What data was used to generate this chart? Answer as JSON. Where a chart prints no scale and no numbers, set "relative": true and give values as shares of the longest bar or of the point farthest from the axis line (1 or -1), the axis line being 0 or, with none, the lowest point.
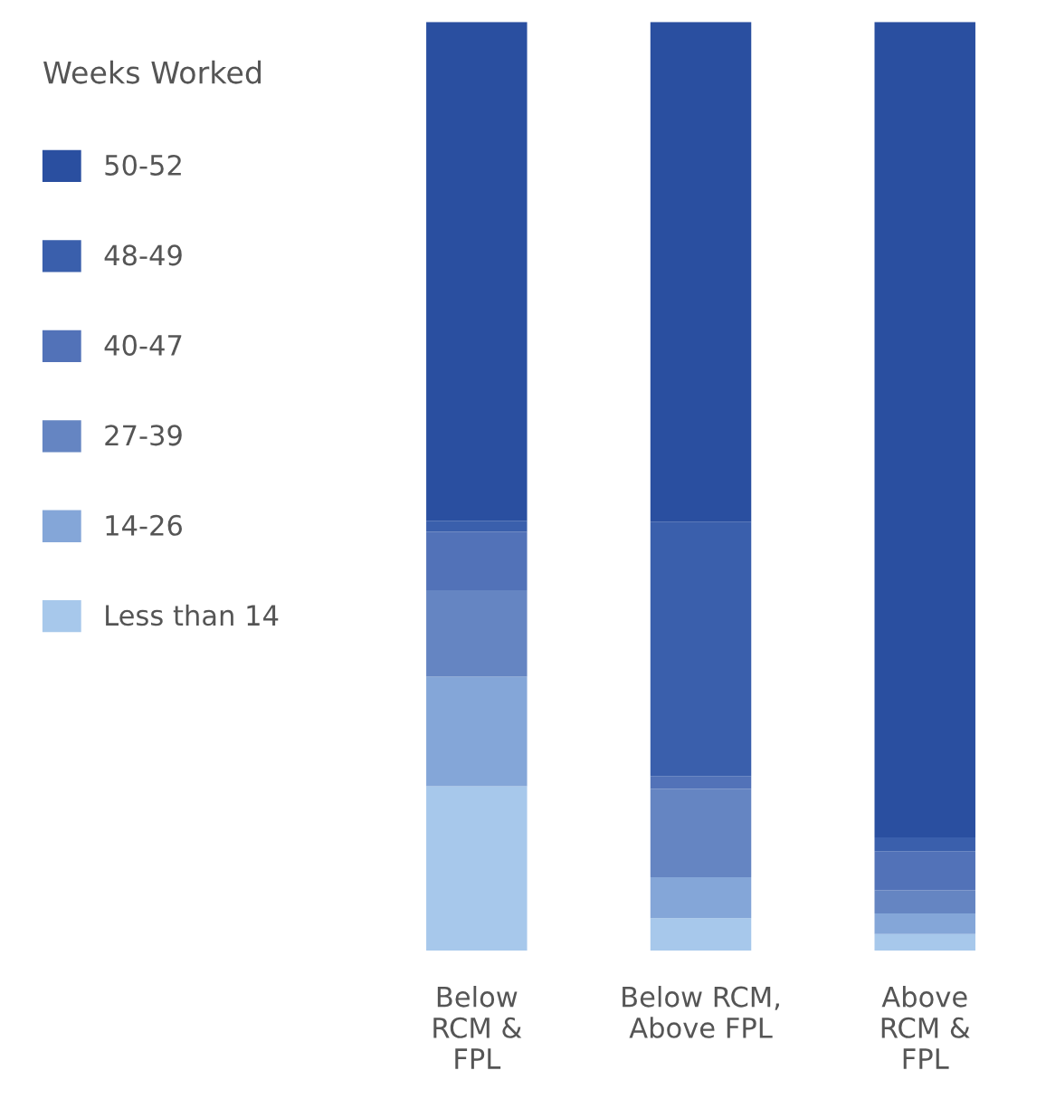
{
  "chart_data": {
    "type": "bar",
    "stacked": true,
    "relative": true,
    "legend_title": "Weeks Worked",
    "legend": "left",
    "categories": [
      "Below\nRCM &\nFPL",
      "Below RCM,\nAbove FPL",
      "Above\nRCM &\nFPL"
    ],
    "series": [
      {
        "name": "Less than 14",
        "color": "#a7c8eb",
        "values": [
          0.177,
          0.035,
          0.018
        ]
      },
      {
        "name": "14-26",
        "color": "#84a6d8",
        "values": [
          0.118,
          0.044,
          0.022
        ]
      },
      {
        "name": "27-39",
        "color": "#6585c2",
        "values": [
          0.093,
          0.095,
          0.025
        ]
      },
      {
        "name": "40-47",
        "color": "#5272b8",
        "values": [
          0.063,
          0.014,
          0.042
        ]
      },
      {
        "name": "48-49",
        "color": "#3a5fac",
        "values": [
          0.012,
          0.274,
          0.015
        ]
      },
      {
        "name": "50-52",
        "color": "#2a4fa0",
        "values": [
          0.537,
          0.538,
          0.878
        ]
      }
    ]
  }
}
